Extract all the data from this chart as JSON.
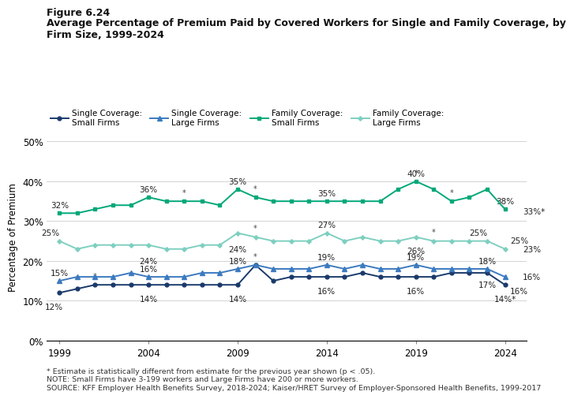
{
  "years": [
    1999,
    2000,
    2001,
    2002,
    2003,
    2004,
    2005,
    2006,
    2007,
    2008,
    2009,
    2010,
    2011,
    2012,
    2013,
    2014,
    2015,
    2016,
    2017,
    2018,
    2019,
    2020,
    2021,
    2022,
    2023,
    2024
  ],
  "single_small": [
    12,
    13,
    14,
    14,
    14,
    14,
    14,
    14,
    14,
    14,
    14,
    19,
    15,
    16,
    16,
    16,
    16,
    17,
    16,
    16,
    16,
    16,
    17,
    17,
    17,
    14
  ],
  "single_large": [
    15,
    16,
    16,
    16,
    17,
    16,
    16,
    16,
    17,
    17,
    18,
    19,
    18,
    18,
    18,
    19,
    18,
    19,
    18,
    18,
    19,
    18,
    18,
    18,
    18,
    16
  ],
  "family_small": [
    32,
    32,
    33,
    34,
    34,
    36,
    35,
    35,
    35,
    34,
    38,
    36,
    35,
    35,
    35,
    35,
    35,
    35,
    35,
    38,
    40,
    38,
    35,
    36,
    38,
    33
  ],
  "family_large": [
    25,
    23,
    24,
    24,
    24,
    24,
    23,
    23,
    24,
    24,
    27,
    26,
    25,
    25,
    25,
    27,
    25,
    26,
    25,
    25,
    26,
    25,
    25,
    25,
    25,
    23
  ],
  "color_single_small": "#1a3a6b",
  "color_single_large": "#3b7abf",
  "color_family_small": "#00a878",
  "color_family_large": "#7ecfc0",
  "title_line1": "Figure 6.24",
  "title_line2": "Average Percentage of Premium Paid by Covered Workers for Single and Family Coverage, by\nFirm Size, 1999-2024",
  "ylabel": "Percentage of Premium",
  "note1": "* Estimate is statistically different from estimate for the previous year shown (p < .05).",
  "note2": "NOTE: Small Firms have 3-199 workers and Large Firms have 200 or more workers.",
  "note3": "SOURCE: KFF Employer Health Benefits Survey, 2018-2024; Kaiser/HRET Survey of Employer-Sponsored Health Benefits, 1999-2017",
  "legend_labels": [
    "Single Coverage:\nSmall Firms",
    "Single Coverage:\nLarge Firms",
    "Family Coverage:\nSmall Firms",
    "Family Coverage:\nLarge Firms"
  ],
  "xlim": [
    1998.3,
    2025.2
  ],
  "ylim": [
    0,
    52
  ],
  "yticks": [
    0,
    10,
    20,
    30,
    40,
    50
  ],
  "xticks": [
    1999,
    2004,
    2009,
    2014,
    2019,
    2024
  ],
  "star_single_small": [
    2001,
    2010
  ],
  "star_single_large": [],
  "star_family_small": [
    2006,
    2010,
    2019,
    2021
  ],
  "star_family_large": [
    2010,
    2020
  ]
}
